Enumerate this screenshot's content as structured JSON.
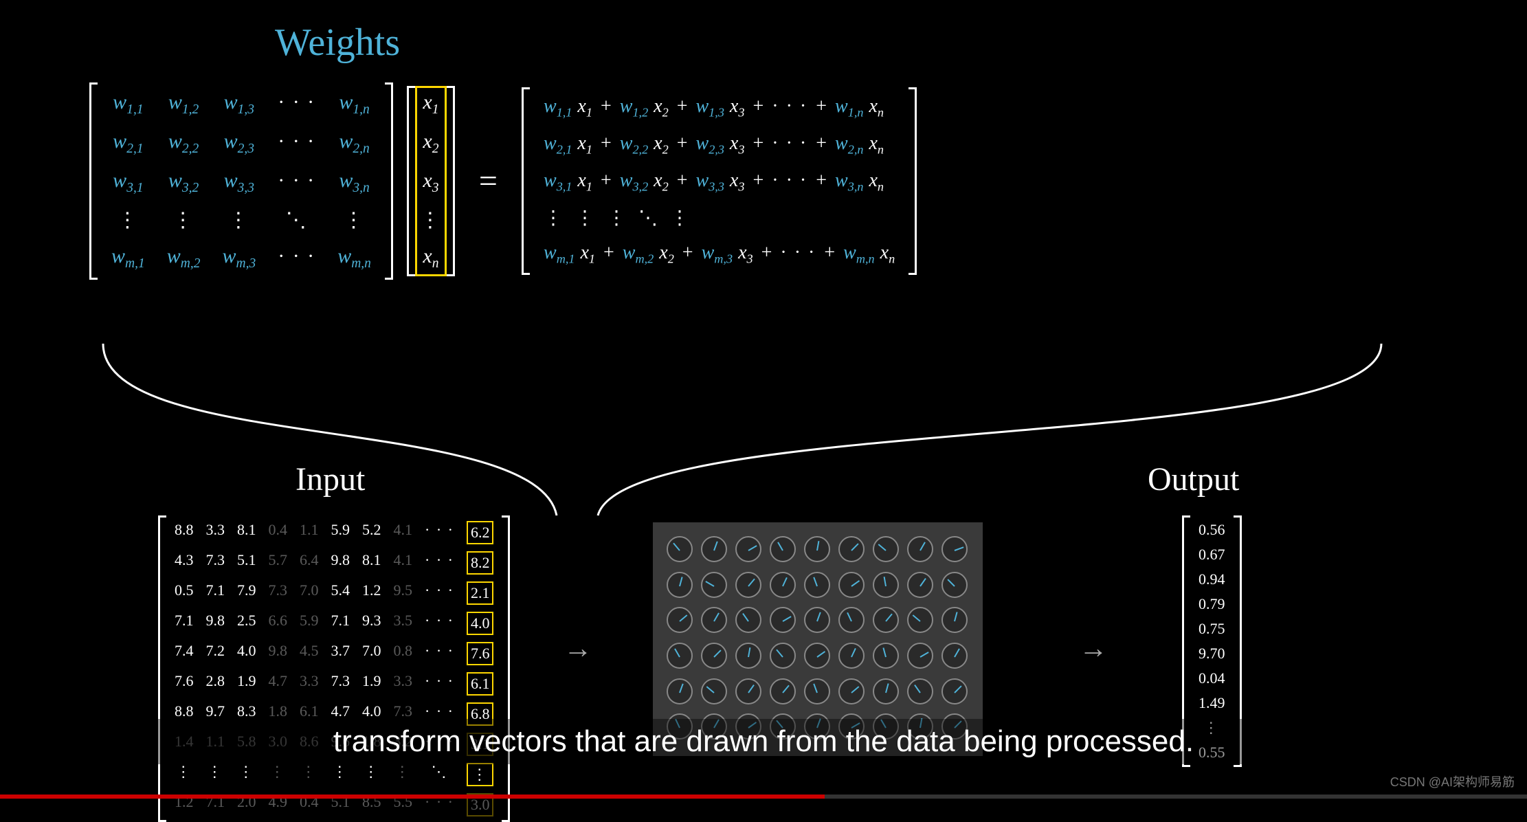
{
  "titles": {
    "weights": "Weights",
    "input": "Input",
    "output": "Output"
  },
  "colors": {
    "accent": "#4fb3d9",
    "highlight": "#ffd700",
    "background": "#000000",
    "text": "#ffffff",
    "dial_bg": "#3a3a3a",
    "progress": "#cc0000"
  },
  "weight_matrix": {
    "rows": [
      [
        "w_{1,1}",
        "w_{1,2}",
        "w_{1,3}",
        "\\cdots",
        "w_{1,n}"
      ],
      [
        "w_{2,1}",
        "w_{2,2}",
        "w_{2,3}",
        "\\cdots",
        "w_{2,n}"
      ],
      [
        "w_{3,1}",
        "w_{3,2}",
        "w_{3,3}",
        "\\cdots",
        "w_{3,n}"
      ],
      [
        "\\vdots",
        "\\vdots",
        "\\vdots",
        "\\ddots",
        "\\vdots"
      ],
      [
        "w_{m,1}",
        "w_{m,2}",
        "w_{m,3}",
        "\\cdots",
        "w_{m,n}"
      ]
    ],
    "cols": 5,
    "row_count": 5,
    "weight_color": "#4fb3d9",
    "font_size": 30
  },
  "x_vector": {
    "entries": [
      "x_1",
      "x_2",
      "x_3",
      "\\vdots",
      "x_n"
    ],
    "highlighted": true,
    "highlight_color": "#ffd700"
  },
  "result_matrix": {
    "rows": [
      [
        [
          "w_{1,1}",
          "x_1"
        ],
        "+",
        [
          "w_{1,2}",
          "x_2"
        ],
        "+",
        [
          "w_{1,3}",
          "x_3"
        ],
        "+",
        "\\cdots",
        "+",
        [
          "w_{1,n}",
          "x_n"
        ]
      ],
      [
        [
          "w_{2,1}",
          "x_1"
        ],
        "+",
        [
          "w_{2,2}",
          "x_2"
        ],
        "+",
        [
          "w_{2,3}",
          "x_3"
        ],
        "+",
        "\\cdots",
        "+",
        [
          "w_{2,n}",
          "x_n"
        ]
      ],
      [
        [
          "w_{3,1}",
          "x_1"
        ],
        "+",
        [
          "w_{3,2}",
          "x_2"
        ],
        "+",
        [
          "w_{3,3}",
          "x_3"
        ],
        "+",
        "\\cdots",
        "+",
        [
          "w_{3,n}",
          "x_n"
        ]
      ],
      [
        "\\vdots",
        "",
        "\\vdots",
        "",
        "\\vdots",
        "",
        "\\ddots",
        "",
        "\\vdots"
      ],
      [
        [
          "w_{m,1}",
          "x_1"
        ],
        "+",
        [
          "w_{m,2}",
          "x_2"
        ],
        "+",
        [
          "w_{m,3}",
          "x_3"
        ],
        "+",
        "\\cdots",
        "+",
        [
          "w_{m,n}",
          "x_n"
        ]
      ]
    ]
  },
  "input_data": {
    "rows": [
      [
        "8.8",
        "3.3",
        "8.1",
        "0.4",
        "1.1",
        "5.9",
        "5.2",
        "4.1",
        "\\cdots",
        "6.2"
      ],
      [
        "4.3",
        "7.3",
        "5.1",
        "5.7",
        "6.4",
        "9.8",
        "8.1",
        "4.1",
        "\\cdots",
        "8.2"
      ],
      [
        "0.5",
        "7.1",
        "7.9",
        "7.3",
        "7.0",
        "5.4",
        "1.2",
        "9.5",
        "\\cdots",
        "2.1"
      ],
      [
        "7.1",
        "9.8",
        "2.5",
        "6.6",
        "5.9",
        "7.1",
        "9.3",
        "3.5",
        "\\cdots",
        "4.0"
      ],
      [
        "7.4",
        "7.2",
        "4.0",
        "9.8",
        "4.5",
        "3.7",
        "7.0",
        "0.8",
        "\\cdots",
        "7.6"
      ],
      [
        "7.6",
        "2.8",
        "1.9",
        "4.7",
        "3.3",
        "7.3",
        "1.9",
        "3.3",
        "\\cdots",
        "6.1"
      ],
      [
        "8.8",
        "9.7",
        "8.3",
        "1.8",
        "6.1",
        "4.7",
        "4.0",
        "7.3",
        "\\cdots",
        "6.8"
      ],
      [
        "1.4",
        "1.1",
        "5.8",
        "3.0",
        "8.6",
        "9.6",
        "1.8",
        "3.2",
        "\\cdots",
        "3.1"
      ],
      [
        "\\vdots",
        "\\vdots",
        "\\vdots",
        "\\vdots",
        "\\vdots",
        "\\vdots",
        "\\vdots",
        "\\vdots",
        "\\ddots",
        "\\vdots"
      ],
      [
        "1.2",
        "7.1",
        "2.0",
        "4.9",
        "0.4",
        "5.1",
        "8.5",
        "5.5",
        "\\cdots",
        "3.0"
      ]
    ],
    "dim_cols": [
      3,
      4,
      7
    ],
    "dim_rows": [
      7,
      9
    ],
    "highlighted_col": 9,
    "font_size": 22
  },
  "output_vector": {
    "entries": [
      "0.56",
      "0.67",
      "0.94",
      "0.79",
      "0.75",
      "9.70",
      "0.04",
      "1.49",
      "\\vdots",
      "0.55"
    ],
    "font_size": 22
  },
  "dials": {
    "rows": 6,
    "cols": 9,
    "needle_color": "#4fb3d9",
    "angles": [
      -40,
      20,
      60,
      -30,
      10,
      45,
      -50,
      30,
      70,
      15,
      -60,
      40,
      25,
      -20,
      55,
      -10,
      35,
      -45,
      50,
      30,
      -35,
      60,
      20,
      -25,
      40,
      -50,
      15,
      -30,
      45,
      10,
      -40,
      55,
      25,
      -15,
      60,
      30,
      20,
      -50,
      35,
      40,
      -20,
      50,
      15,
      -35,
      45,
      -25,
      30,
      55,
      -40,
      20,
      60,
      -30,
      10,
      45
    ]
  },
  "caption": "transform vectors that are drawn from the data being processed.",
  "watermark": "CSDN @AI架构师易筋",
  "progress": {
    "percent": 54
  },
  "curves": {
    "stroke": "#ffffff",
    "stroke_width": 3
  }
}
